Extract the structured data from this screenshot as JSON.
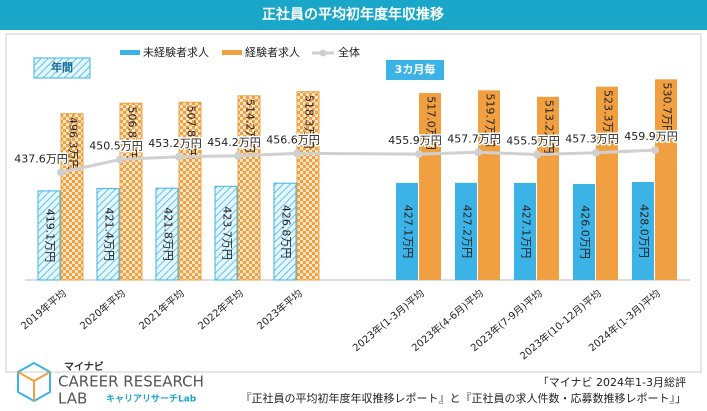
{
  "chart_data": {
    "type": "bar",
    "title": "正社員の平均初年度年収推移",
    "categories": [
      "2019年平均",
      "2020年平均",
      "2021年平均",
      "2022年平均",
      "2023年平均",
      "2023年(1-3月)平均",
      "2023年(4-6月)平均",
      "2023年(7-9月)平均",
      "2023年(10-12月)平均",
      "2024年(1-3月)平均"
    ],
    "series": [
      {
        "name": "未経験者求人",
        "color": "#3bb3e6",
        "values": [
          419.1,
          421.4,
          421.8,
          423.7,
          426.8,
          427.1,
          427.2,
          427.1,
          426.0,
          428.0
        ],
        "value_labels": [
          "419.1万円",
          "421.4万円",
          "421.8万円",
          "423.7万円",
          "426.8万円",
          "427.1万円",
          "427.2万円",
          "427.1万円",
          "426.0万円",
          "428.0万円"
        ]
      },
      {
        "name": "経験者求人",
        "color": "#f0a040",
        "values": [
          496.3,
          506.8,
          507.8,
          514.2,
          518.3,
          517.0,
          519.7,
          513.2,
          523.3,
          530.7
        ],
        "value_labels": [
          "496.3万円",
          "506.8万円",
          "507.8万円",
          "514.2万円",
          "518.3万円",
          "517.0万円",
          "519.7万円",
          "513.2万円",
          "523.3万円",
          "530.7万円"
        ]
      },
      {
        "name": "全体",
        "type": "line",
        "color": "#d0d0d0",
        "values": [
          437.6,
          450.5,
          453.2,
          454.2,
          456.6,
          455.9,
          457.7,
          455.5,
          457.3,
          459.9
        ],
        "value_labels": [
          "437.6万円",
          "450.5万円",
          "453.2万円",
          "454.2万円",
          "456.6万円",
          "455.9万円",
          "457.7万円",
          "455.5万円",
          "457.3万円",
          "459.9万円"
        ]
      }
    ],
    "ylim": [
      330,
      570
    ],
    "section_labels": [
      "年間",
      "3カ月毎"
    ],
    "source": [
      "「マイナビ 2024年1-3月総評",
      "『正社員の平均初年度年収推移レポート』と『正社員の求人件数・応募数推移レポート』」"
    ],
    "logo": {
      "brand": "マイナビ",
      "line1": "CAREER RESEARCH",
      "line2": "LAB",
      "sub": "キャリアリサーチLab"
    }
  }
}
